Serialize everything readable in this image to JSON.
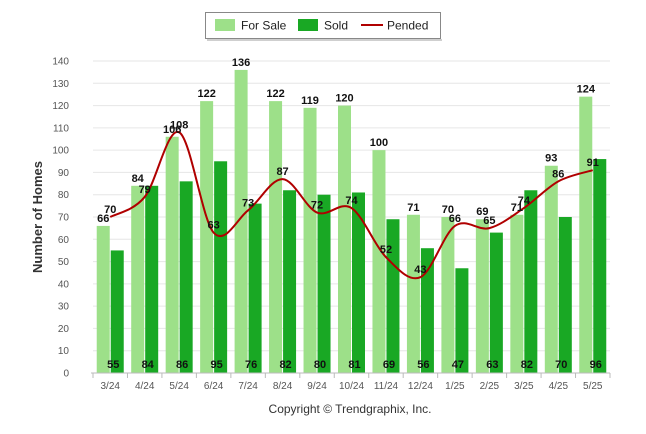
{
  "chart_data": {
    "type": "bar",
    "categories": [
      "3/24",
      "4/24",
      "5/24",
      "6/24",
      "7/24",
      "8/24",
      "9/24",
      "10/24",
      "11/24",
      "12/24",
      "1/25",
      "2/25",
      "3/25",
      "4/25",
      "5/25"
    ],
    "series": [
      {
        "name": "For Sale",
        "kind": "bar",
        "color": "#9de089",
        "values": [
          66,
          84,
          106,
          122,
          136,
          122,
          119,
          120,
          100,
          71,
          70,
          69,
          71,
          93,
          124
        ]
      },
      {
        "name": "Sold",
        "kind": "bar",
        "color": "#19a824",
        "values": [
          55,
          84,
          86,
          95,
          76,
          82,
          80,
          81,
          69,
          56,
          47,
          63,
          82,
          70,
          96
        ]
      },
      {
        "name": "Pended",
        "kind": "line",
        "color": "#b00000",
        "values": [
          70,
          79,
          108,
          63,
          73,
          87,
          72,
          74,
          52,
          43,
          66,
          65,
          74,
          86,
          91
        ]
      }
    ],
    "ylabel": "Number of Homes",
    "xlabel": "",
    "ylim": [
      0,
      140
    ],
    "yticks": [
      0,
      10,
      20,
      30,
      40,
      50,
      60,
      70,
      80,
      90,
      100,
      110,
      120,
      130,
      140
    ],
    "grid": true,
    "legend_position": "top-center"
  },
  "footer": {
    "copyright": "Copyright © Trendgraphix, Inc."
  }
}
